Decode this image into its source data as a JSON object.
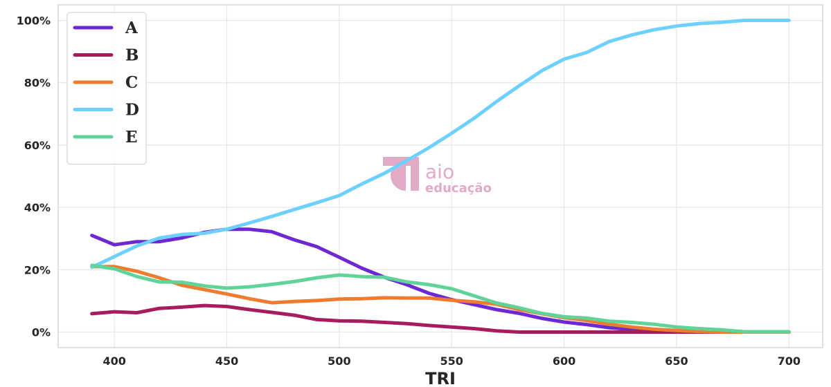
{
  "chart_data": {
    "type": "line",
    "xlabel": "TRI",
    "ylabel": "",
    "xlim": [
      375,
      715
    ],
    "ylim": [
      -5,
      105
    ],
    "xticks": [
      400,
      450,
      500,
      550,
      600,
      650,
      700
    ],
    "xtick_labels": [
      "400",
      "450",
      "500",
      "550",
      "600",
      "650",
      "700"
    ],
    "yticks": [
      0,
      20,
      40,
      60,
      80,
      100
    ],
    "ytick_labels": [
      "0%",
      "20%",
      "40%",
      "60%",
      "80%",
      "100%"
    ],
    "grid": true,
    "legend_position": "top-left",
    "x": [
      390,
      400,
      410,
      420,
      430,
      440,
      450,
      460,
      470,
      480,
      490,
      500,
      510,
      520,
      530,
      540,
      550,
      560,
      570,
      580,
      590,
      600,
      610,
      620,
      630,
      640,
      650,
      660,
      670,
      680,
      690,
      700
    ],
    "series": [
      {
        "name": "A",
        "color": "#6d28d4",
        "values": [
          31,
          28,
          29,
          29,
          30.2,
          32,
          33,
          33,
          32.2,
          29.6,
          27.4,
          24,
          20.5,
          17.6,
          15.2,
          12.4,
          10.4,
          8.8,
          7.2,
          6,
          4.4,
          3.2,
          2.4,
          1.4,
          0.8,
          0.4,
          0.2,
          0,
          0,
          0,
          0,
          0
        ]
      },
      {
        "name": "B",
        "color": "#a61c5c",
        "values": [
          5.9,
          6.5,
          6.2,
          7.6,
          8,
          8.5,
          8.2,
          7.2,
          6.3,
          5.4,
          4,
          3.6,
          3.5,
          3.1,
          2.7,
          2.1,
          1.6,
          1.1,
          0.4,
          0,
          0,
          0,
          0,
          0,
          0,
          0,
          0,
          0,
          0,
          0,
          0,
          0
        ]
      },
      {
        "name": "C",
        "color": "#f07b2f",
        "values": [
          21,
          21,
          19.5,
          17.4,
          15,
          13.6,
          12.2,
          10.7,
          9.4,
          9.8,
          10.1,
          10.6,
          10.7,
          11,
          10.9,
          10.9,
          10.2,
          9.7,
          8.9,
          7.2,
          5.9,
          4.6,
          3.7,
          2.5,
          1.6,
          0.9,
          0.5,
          0.2,
          0,
          0,
          0,
          0
        ]
      },
      {
        "name": "D",
        "color": "#6ed0ff",
        "values": [
          20.8,
          24.2,
          27.6,
          30.2,
          31.3,
          31.7,
          33,
          35,
          37.1,
          39.3,
          41.5,
          43.8,
          47.5,
          50.9,
          55,
          59.2,
          63.8,
          68.6,
          74,
          79,
          83.8,
          87.6,
          89.7,
          93.2,
          95.3,
          97,
          98.2,
          99,
          99.4,
          100,
          100,
          100
        ]
      },
      {
        "name": "E",
        "color": "#5fd398",
        "values": [
          21.4,
          20.3,
          17.8,
          16.1,
          16,
          14.8,
          14.1,
          14.5,
          15.3,
          16.2,
          17.4,
          18.3,
          17.8,
          17.6,
          16.1,
          15.2,
          13.9,
          11.6,
          9.3,
          7.8,
          6,
          4.9,
          4.5,
          3.5,
          3.1,
          2.5,
          1.6,
          1.1,
          0.7,
          0.1,
          0.1,
          0.1
        ]
      }
    ]
  },
  "watermark": {
    "line1": "aio",
    "line2": "educação",
    "color": "#e0a6c5"
  }
}
